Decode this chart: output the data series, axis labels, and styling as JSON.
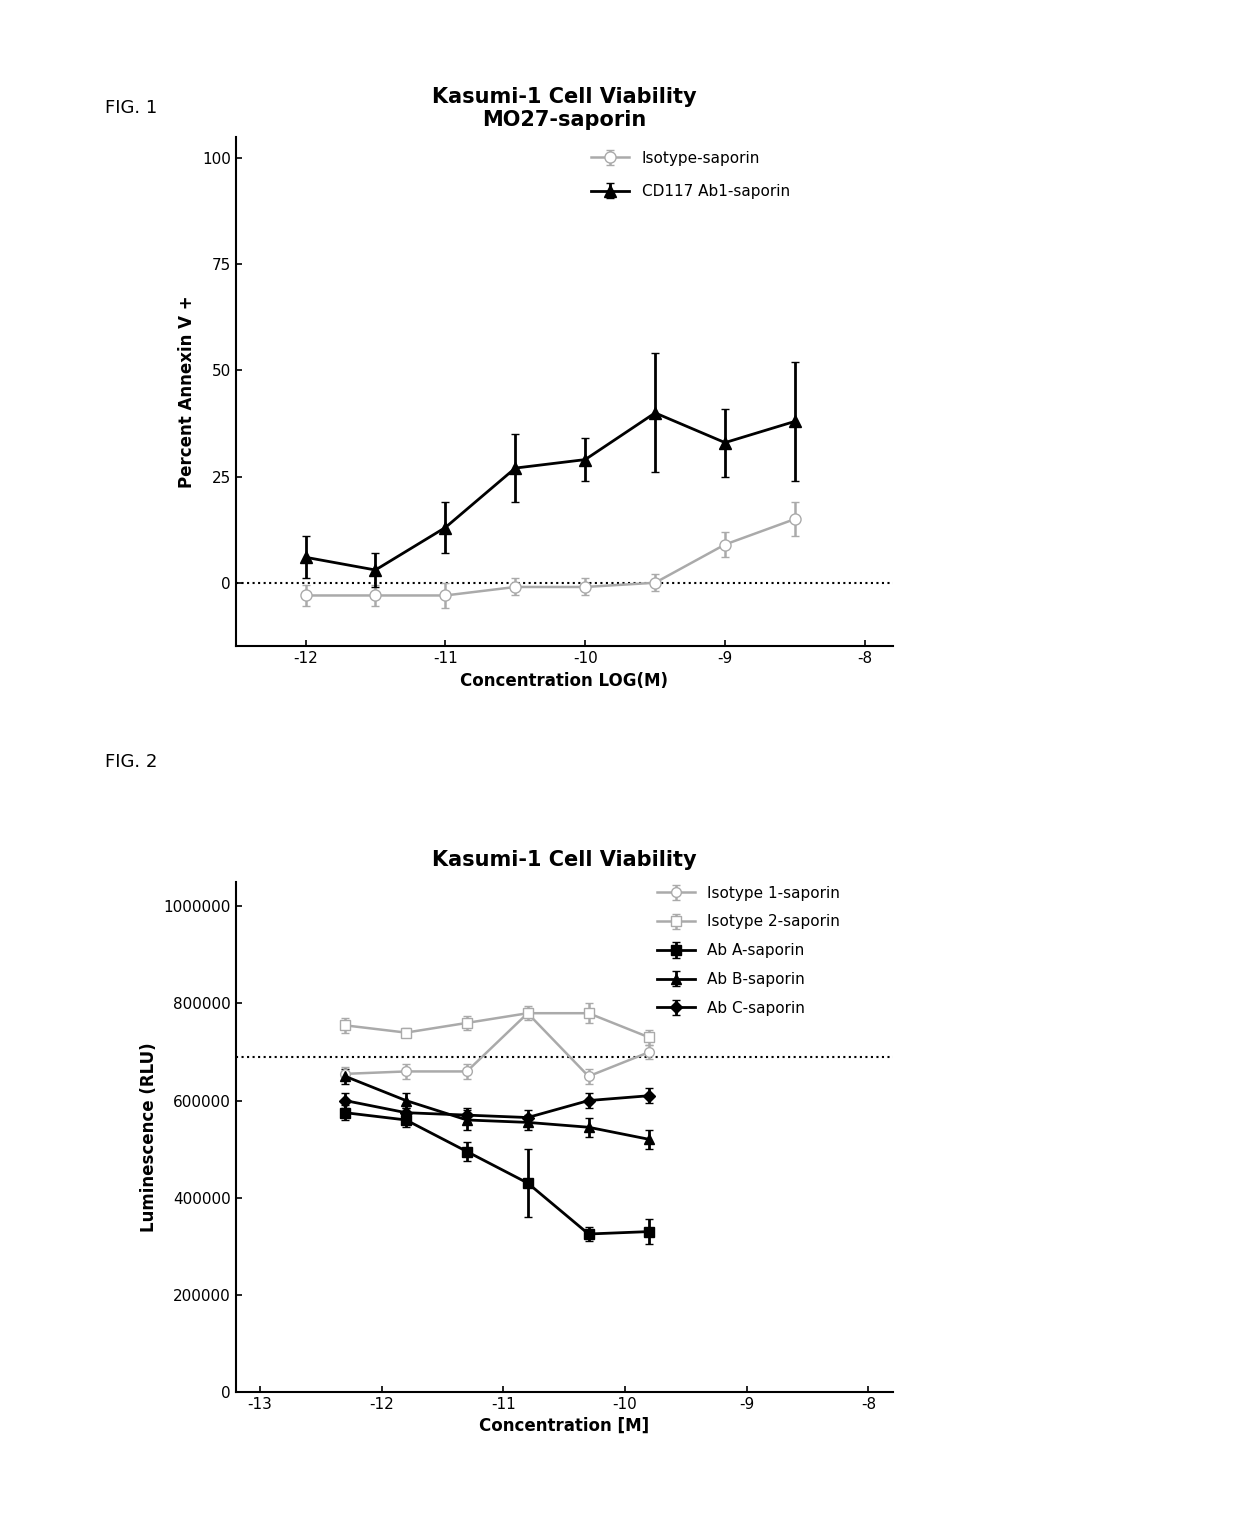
{
  "fig1": {
    "title_line1": "Kasumi-1 Cell Viability",
    "title_line2": "MO27-saporin",
    "xlabel": "Concentration LOG(M)",
    "ylabel": "Percent Annexin V +",
    "xlim": [
      -12.5,
      -7.8
    ],
    "ylim": [
      -15,
      105
    ],
    "xticks": [
      -12,
      -11,
      -10,
      -9,
      -8
    ],
    "yticks": [
      0,
      25,
      50,
      75,
      100
    ],
    "dotted_y": 0,
    "series": {
      "isotype": {
        "label": "Isotype-saporin",
        "x": [
          -12.0,
          -11.5,
          -11.0,
          -10.5,
          -10.0,
          -9.5,
          -9.0,
          -8.5
        ],
        "y": [
          -3,
          -3,
          -3,
          -1,
          -1,
          0,
          9,
          15
        ],
        "yerr": [
          2.5,
          2.5,
          3,
          2,
          2,
          2,
          3,
          4
        ],
        "color": "#aaaaaa",
        "marker": "o",
        "markersize": 8,
        "markerfacecolor": "white",
        "linewidth": 1.8
      },
      "cd117": {
        "label": "CD117 Ab1-saporin",
        "x": [
          -12.0,
          -11.5,
          -11.0,
          -10.5,
          -10.0,
          -9.5,
          -9.0,
          -8.5
        ],
        "y": [
          6,
          3,
          13,
          27,
          29,
          40,
          33,
          38
        ],
        "yerr": [
          5,
          4,
          6,
          8,
          5,
          14,
          8,
          14
        ],
        "color": "#000000",
        "marker": "^",
        "markersize": 9,
        "markerfacecolor": "#000000",
        "linewidth": 2.0
      }
    }
  },
  "fig2": {
    "title": "Kasumi-1 Cell Viability",
    "xlabel": "Concentration [M]",
    "ylabel": "Luminescence (RLU)",
    "xlim": [
      -13.2,
      -7.8
    ],
    "ylim": [
      0,
      1050000
    ],
    "yticks": [
      0,
      200000,
      400000,
      600000,
      800000,
      1000000
    ],
    "ytick_labels": [
      "0",
      "200000",
      "400000",
      "600000",
      "800000",
      "1000000"
    ],
    "xticks": [
      -13,
      -12,
      -11,
      -10,
      -9,
      -8
    ],
    "dotted_y": 690000,
    "series": {
      "isotype1": {
        "label": "Isotype 1-saporin",
        "x": [
          -12.3,
          -11.8,
          -11.3,
          -10.8,
          -10.3,
          -9.8
        ],
        "y": [
          655000,
          660000,
          660000,
          780000,
          650000,
          700000
        ],
        "yerr": [
          15000,
          15000,
          15000,
          15000,
          15000,
          15000
        ],
        "color": "#aaaaaa",
        "marker": "o",
        "markersize": 7,
        "markerfacecolor": "white",
        "linewidth": 1.8
      },
      "isotype2": {
        "label": "Isotype 2-saporin",
        "x": [
          -12.3,
          -11.8,
          -11.3,
          -10.8,
          -10.3,
          -9.8
        ],
        "y": [
          755000,
          740000,
          760000,
          780000,
          780000,
          730000
        ],
        "yerr": [
          15000,
          10000,
          15000,
          10000,
          20000,
          15000
        ],
        "color": "#aaaaaa",
        "marker": "s",
        "markersize": 7,
        "markerfacecolor": "white",
        "linewidth": 1.8
      },
      "abA": {
        "label": "Ab A-saporin",
        "x": [
          -12.3,
          -11.8,
          -11.3,
          -10.8,
          -10.3,
          -9.8
        ],
        "y": [
          575000,
          560000,
          495000,
          430000,
          325000,
          330000
        ],
        "yerr": [
          15000,
          15000,
          20000,
          70000,
          15000,
          25000
        ],
        "color": "#000000",
        "marker": "s",
        "markersize": 7,
        "markerfacecolor": "#000000",
        "linewidth": 2.0
      },
      "abB": {
        "label": "Ab B-saporin",
        "x": [
          -12.3,
          -11.8,
          -11.3,
          -10.8,
          -10.3,
          -9.8
        ],
        "y": [
          650000,
          600000,
          560000,
          555000,
          545000,
          520000
        ],
        "yerr": [
          15000,
          15000,
          20000,
          15000,
          20000,
          20000
        ],
        "color": "#000000",
        "marker": "^",
        "markersize": 7,
        "markerfacecolor": "#000000",
        "linewidth": 2.0
      },
      "abC": {
        "label": "Ab C-saporin",
        "x": [
          -12.3,
          -11.8,
          -11.3,
          -10.8,
          -10.3,
          -9.8
        ],
        "y": [
          600000,
          575000,
          570000,
          565000,
          600000,
          610000
        ],
        "yerr": [
          15000,
          10000,
          15000,
          15000,
          15000,
          15000
        ],
        "color": "#000000",
        "marker": "D",
        "markersize": 6,
        "markerfacecolor": "#000000",
        "linewidth": 2.0
      }
    }
  },
  "background_color": "#ffffff",
  "fig_label_fontsize": 13,
  "title_fontsize": 15,
  "axis_label_fontsize": 12,
  "tick_fontsize": 11,
  "legend_fontsize": 11
}
